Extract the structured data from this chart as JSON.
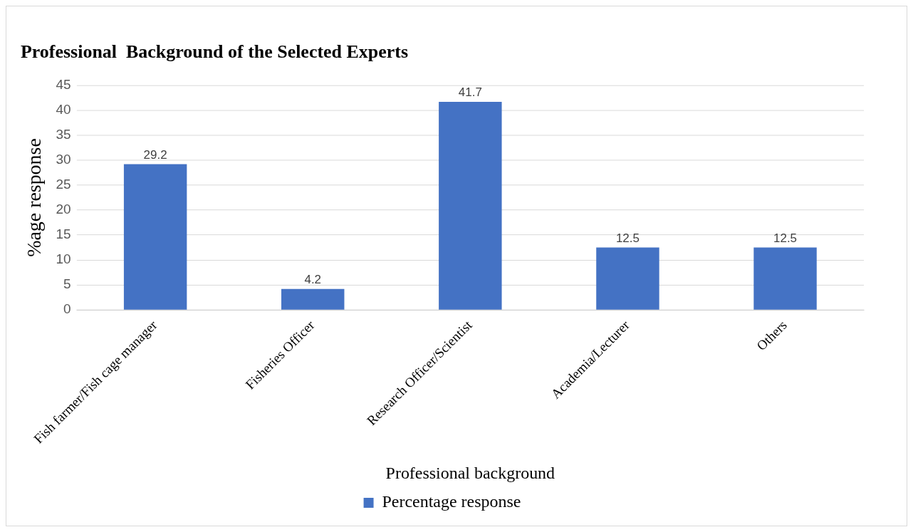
{
  "chart_data": {
    "type": "bar",
    "title": "Professional  Background of the Selected Experts",
    "xlabel": "Professional background",
    "ylabel": "%age response",
    "categories": [
      "Fish farmer/Fish cage manager",
      "Fisheries Officer",
      "Research Officer/Scientist",
      "Academia/Lecturer",
      "Others"
    ],
    "series": [
      {
        "name": "Percentage response",
        "color": "#4472c4",
        "values": [
          29.2,
          4.2,
          41.7,
          12.5,
          12.5
        ]
      }
    ],
    "ylim": [
      0,
      45
    ],
    "yticks": [
      0,
      5,
      10,
      15,
      20,
      25,
      30,
      35,
      40,
      45
    ],
    "grid": "y",
    "legend": "bottom",
    "data_labels": true
  }
}
